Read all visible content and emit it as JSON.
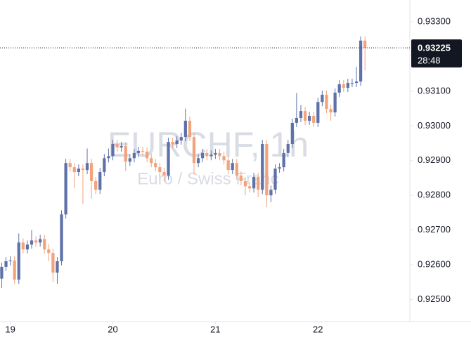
{
  "chart_data": {
    "type": "candlestick",
    "watermark": "EURCHF, 1h",
    "watermark_subtitle": "Euro / Swiss Franc",
    "up_color": "#5e71a8",
    "down_color": "#f3a37b",
    "last_price": 0.93225,
    "last_price_label": "0.93225",
    "countdown": "28:48",
    "x": [
      -2,
      -1,
      0,
      1,
      2,
      3,
      4,
      5,
      6,
      7,
      8,
      9,
      10,
      11,
      12,
      13,
      14,
      15,
      16,
      17,
      18,
      19,
      20,
      21,
      22,
      23,
      24,
      25,
      26,
      27,
      28,
      29,
      30,
      31,
      32,
      33,
      34,
      35,
      36,
      37,
      38,
      39,
      40,
      41,
      42,
      43,
      44,
      45,
      46,
      47,
      48,
      49,
      50,
      51,
      52,
      53,
      54,
      55,
      56,
      57,
      58,
      59,
      60,
      61,
      62,
      63,
      64,
      65,
      66,
      67,
      68,
      69,
      70,
      71,
      72,
      73,
      74,
      75,
      76,
      77,
      78,
      79,
      80,
      81,
      82,
      83
    ],
    "open": [
      0.9256,
      0.92594,
      0.9261,
      0.92612,
      0.92557,
      0.92664,
      0.92644,
      0.92658,
      0.9267,
      0.92664,
      0.92674,
      0.92644,
      0.92634,
      0.92577,
      0.9261,
      0.92745,
      0.92893,
      0.92881,
      0.92867,
      0.92877,
      0.92873,
      0.92893,
      0.92841,
      0.92816,
      0.92867,
      0.92907,
      0.92913,
      0.92948,
      0.92938,
      0.92942,
      0.92897,
      0.92907,
      0.92922,
      0.92928,
      0.92926,
      0.92907,
      0.92893,
      0.92881,
      0.92867,
      0.92857,
      0.92954,
      0.92948,
      0.92958,
      0.92968,
      0.93015,
      0.92968,
      0.92893,
      0.92907,
      0.92922,
      0.92913,
      0.92917,
      0.92922,
      0.92913,
      0.92901,
      0.92873,
      0.92893,
      0.92857,
      0.92841,
      0.92826,
      0.9282,
      0.92853,
      0.92816,
      0.92948,
      0.928,
      0.92816,
      0.92877,
      0.92881,
      0.92922,
      0.92948,
      0.93009,
      0.93023,
      0.93043,
      0.93015,
      0.93029,
      0.93009,
      0.93069,
      0.9309,
      0.93049,
      0.93039,
      0.93096,
      0.9312,
      0.9311,
      0.93124,
      0.93124,
      0.93128,
      0.93246
    ],
    "high": [
      0.92606,
      0.92622,
      0.92624,
      0.92624,
      0.9269,
      0.92676,
      0.9267,
      0.927,
      0.92682,
      0.92686,
      0.92686,
      0.9266,
      0.92646,
      0.92622,
      0.92757,
      0.92905,
      0.92905,
      0.92893,
      0.92889,
      0.92889,
      0.92935,
      0.92905,
      0.92853,
      0.92879,
      0.92919,
      0.92935,
      0.9296,
      0.9296,
      0.92954,
      0.92954,
      0.92919,
      0.92934,
      0.9294,
      0.9294,
      0.92938,
      0.92919,
      0.92905,
      0.92893,
      0.92879,
      0.92966,
      0.92966,
      0.9297,
      0.9298,
      0.9305,
      0.93027,
      0.9298,
      0.92919,
      0.92934,
      0.92934,
      0.92929,
      0.92934,
      0.92934,
      0.92925,
      0.92913,
      0.92905,
      0.92905,
      0.92869,
      0.92853,
      0.92838,
      0.92865,
      0.92865,
      0.9296,
      0.9296,
      0.92828,
      0.92889,
      0.92893,
      0.92934,
      0.9296,
      0.93021,
      0.93095,
      0.9306,
      0.93055,
      0.93041,
      0.93041,
      0.93081,
      0.93102,
      0.93102,
      0.93061,
      0.93108,
      0.93132,
      0.93132,
      0.93136,
      0.93136,
      0.9317,
      0.93258,
      0.93258
    ],
    "low": [
      0.92533,
      0.92582,
      0.92598,
      0.92545,
      0.92545,
      0.92632,
      0.92632,
      0.92646,
      0.92652,
      0.92652,
      0.92632,
      0.9261,
      0.9255,
      0.92545,
      0.92598,
      0.92733,
      0.92869,
      0.9282,
      0.92855,
      0.92775,
      0.92861,
      0.9279,
      0.92804,
      0.92804,
      0.92855,
      0.92895,
      0.92901,
      0.92926,
      0.92926,
      0.9287,
      0.92885,
      0.92895,
      0.9291,
      0.92914,
      0.92895,
      0.92881,
      0.92869,
      0.92855,
      0.9284,
      0.92845,
      0.92936,
      0.92936,
      0.92946,
      0.92956,
      0.92956,
      0.9286,
      0.92881,
      0.92895,
      0.92901,
      0.92901,
      0.92905,
      0.92901,
      0.92889,
      0.92861,
      0.92861,
      0.92845,
      0.92829,
      0.928,
      0.92808,
      0.92808,
      0.92795,
      0.92804,
      0.92765,
      0.9278,
      0.92804,
      0.92865,
      0.92869,
      0.9291,
      0.92936,
      0.92997,
      0.93011,
      0.93003,
      0.93003,
      0.92997,
      0.92997,
      0.93057,
      0.93037,
      0.93015,
      0.93027,
      0.93084,
      0.93098,
      0.93098,
      0.93112,
      0.93112,
      0.93116,
      0.9316
    ],
    "close": [
      0.92594,
      0.9261,
      0.92612,
      0.92557,
      0.92664,
      0.92644,
      0.92658,
      0.9267,
      0.92664,
      0.92674,
      0.92644,
      0.92634,
      0.92577,
      0.9261,
      0.92745,
      0.92893,
      0.92881,
      0.92867,
      0.92877,
      0.92873,
      0.92893,
      0.92841,
      0.92816,
      0.92867,
      0.92907,
      0.92913,
      0.92948,
      0.92938,
      0.92942,
      0.92897,
      0.92907,
      0.92922,
      0.92928,
      0.92926,
      0.92907,
      0.92893,
      0.92881,
      0.92867,
      0.92857,
      0.92954,
      0.92948,
      0.92958,
      0.92968,
      0.93015,
      0.92968,
      0.92893,
      0.92907,
      0.92922,
      0.92913,
      0.92917,
      0.92922,
      0.92913,
      0.92901,
      0.92873,
      0.92893,
      0.92857,
      0.92841,
      0.92826,
      0.9282,
      0.92853,
      0.92816,
      0.92948,
      0.928,
      0.92816,
      0.92877,
      0.92881,
      0.92922,
      0.92948,
      0.93009,
      0.93023,
      0.93043,
      0.93015,
      0.93029,
      0.93009,
      0.93069,
      0.9309,
      0.93049,
      0.93039,
      0.93096,
      0.9312,
      0.9311,
      0.93124,
      0.93124,
      0.93128,
      0.93246,
      0.93225
    ],
    "xlim": [
      -2.4,
      93.5
    ],
    "ylim": [
      0.92436,
      0.93363
    ],
    "xticks": [
      {
        "value": 0,
        "label": "19"
      },
      {
        "value": 24,
        "label": "20"
      },
      {
        "value": 48,
        "label": "21"
      },
      {
        "value": 72,
        "label": "22"
      }
    ],
    "yticks": [
      {
        "value": 0.925,
        "label": "0.92500"
      },
      {
        "value": 0.926,
        "label": "0.92600"
      },
      {
        "value": 0.927,
        "label": "0.92700"
      },
      {
        "value": 0.928,
        "label": "0.92800"
      },
      {
        "value": 0.929,
        "label": "0.92900"
      },
      {
        "value": 0.93,
        "label": "0.93000"
      },
      {
        "value": 0.931,
        "label": "0.93100"
      },
      {
        "value": 0.933,
        "label": "0.93300"
      }
    ],
    "grid": false
  }
}
